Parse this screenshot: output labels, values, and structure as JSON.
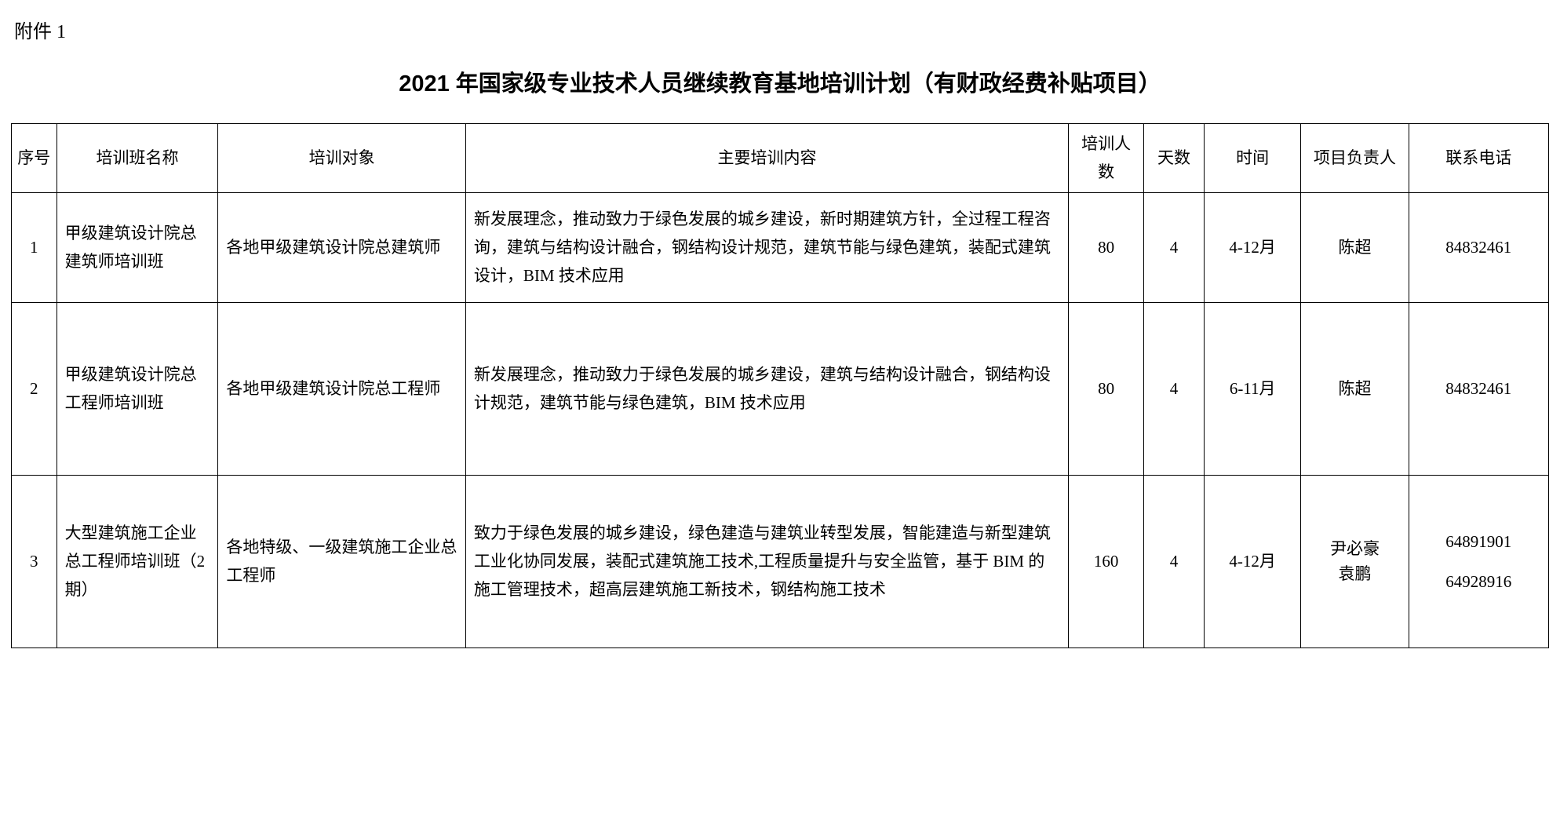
{
  "attachment_label": "附件 1",
  "title": "2021 年国家级专业技术人员继续教育基地培训计划（有财政经费补贴项目）",
  "columns": {
    "seq": "序号",
    "name": "培训班名称",
    "target": "培训对象",
    "content": "主要培训内容",
    "count": "培训人数",
    "days": "天数",
    "time": "时间",
    "person": "项目负责人",
    "phone": "联系电话"
  },
  "rows": [
    {
      "seq": "1",
      "name": "甲级建筑设计院总建筑师培训班",
      "target": "各地甲级建筑设计院总建筑师",
      "content": "新发展理念，推动致力于绿色发展的城乡建设，新时期建筑方针，全过程工程咨询，建筑与结构设计融合，钢结构设计规范，建筑节能与绿色建筑，装配式建筑设计，BIM 技术应用",
      "count": "80",
      "days": "4",
      "time": "4-12月",
      "person": "陈超",
      "phone": "84832461"
    },
    {
      "seq": "2",
      "name": "甲级建筑设计院总工程师培训班",
      "target": "各地甲级建筑设计院总工程师",
      "content": "新发展理念，推动致力于绿色发展的城乡建设，建筑与结构设计融合，钢结构设计规范，建筑节能与绿色建筑，BIM 技术应用",
      "count": "80",
      "days": "4",
      "time": "6-11月",
      "person": "陈超",
      "phone": "84832461"
    },
    {
      "seq": "3",
      "name": "大型建筑施工企业总工程师培训班（2 期）",
      "target": "各地特级、一级建筑施工企业总工程师",
      "content": "致力于绿色发展的城乡建设，绿色建造与建筑业转型发展，智能建造与新型建筑工业化协同发展，装配式建筑施工技术,工程质量提升与安全监管，基于 BIM 的施工管理技术，超高层建筑施工新技术，钢结构施工技术",
      "count": "160",
      "days": "4",
      "time": "4-12月",
      "person": "尹必豪\n袁鹏",
      "phone": "64891901\n64928916"
    }
  ],
  "styling": {
    "background_color": "#ffffff",
    "text_color": "#000000",
    "border_color": "#000000",
    "body_fontsize": 21,
    "title_fontsize": 29,
    "attachment_fontsize": 24,
    "line_height": 1.7
  }
}
